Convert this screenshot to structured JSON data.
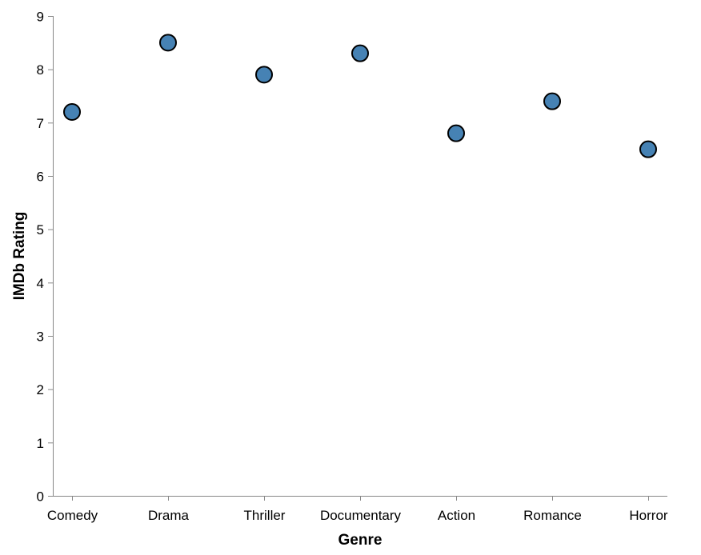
{
  "chart_data": {
    "type": "scatter",
    "categories": [
      "Comedy",
      "Drama",
      "Thriller",
      "Documentary",
      "Action",
      "Romance",
      "Horror"
    ],
    "values": [
      7.2,
      8.5,
      7.9,
      8.3,
      6.8,
      7.4,
      6.5
    ],
    "xlabel": "Genre",
    "ylabel": "IMDb Rating",
    "ylim": [
      0,
      9
    ],
    "yticks": [
      0,
      1,
      2,
      3,
      4,
      5,
      6,
      7,
      8,
      9
    ],
    "grid": false,
    "point_color": "#4682b4"
  }
}
